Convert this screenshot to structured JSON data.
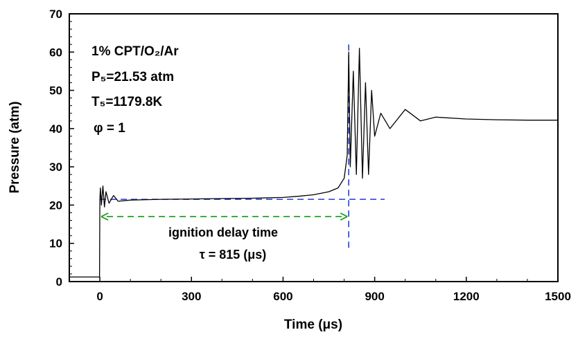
{
  "chart_data": {
    "type": "line",
    "title": "",
    "xlabel": "Time (μs)",
    "ylabel": "Pressure (atm)",
    "xlim": [
      -100,
      1500
    ],
    "ylim": [
      0,
      70
    ],
    "x_ticks": [
      0,
      300,
      600,
      900,
      1200,
      1500
    ],
    "y_ticks": [
      0,
      10,
      20,
      30,
      40,
      50,
      60,
      70
    ],
    "grid": false,
    "series": [
      {
        "color": "#000000",
        "x": [
          -100,
          -5,
          -1,
          0,
          2,
          5,
          10,
          15,
          20,
          30,
          45,
          60,
          100,
          200,
          300,
          400,
          500,
          600,
          650,
          700,
          750,
          780,
          800,
          810,
          815,
          820,
          830,
          840,
          850,
          860,
          870,
          880,
          890,
          900,
          920,
          950,
          1000,
          1050,
          1100,
          1200,
          1300,
          1400,
          1500
        ],
        "y": [
          1.2,
          1.2,
          1.2,
          21.5,
          24.5,
          20,
          25,
          19.5,
          23.5,
          20.5,
          22.5,
          21,
          21.3,
          21.5,
          21.6,
          21.7,
          21.8,
          22,
          22.3,
          22.7,
          23.5,
          24.5,
          27,
          33,
          60,
          30,
          55,
          28,
          61,
          27,
          52,
          28,
          50,
          38,
          44,
          40,
          45,
          42,
          43,
          42.5,
          42.3,
          42.2,
          42.2
        ]
      }
    ],
    "annotations": {
      "mixture": "1% CPT/O₂/Ar",
      "p5": "P₅=21.53 atm",
      "t5": "T₅=1179.8K",
      "phi": "φ = 1",
      "delay_label": "ignition delay time",
      "tau": "τ = 815 (μs)"
    },
    "reference_lines": {
      "baseline_pressure": 21.5,
      "ignition_time": 815,
      "arrow_y": 17,
      "arrow_x": [
        0,
        815
      ],
      "line_color": "#1f3fd8",
      "arrow_color": "#22a022"
    }
  }
}
